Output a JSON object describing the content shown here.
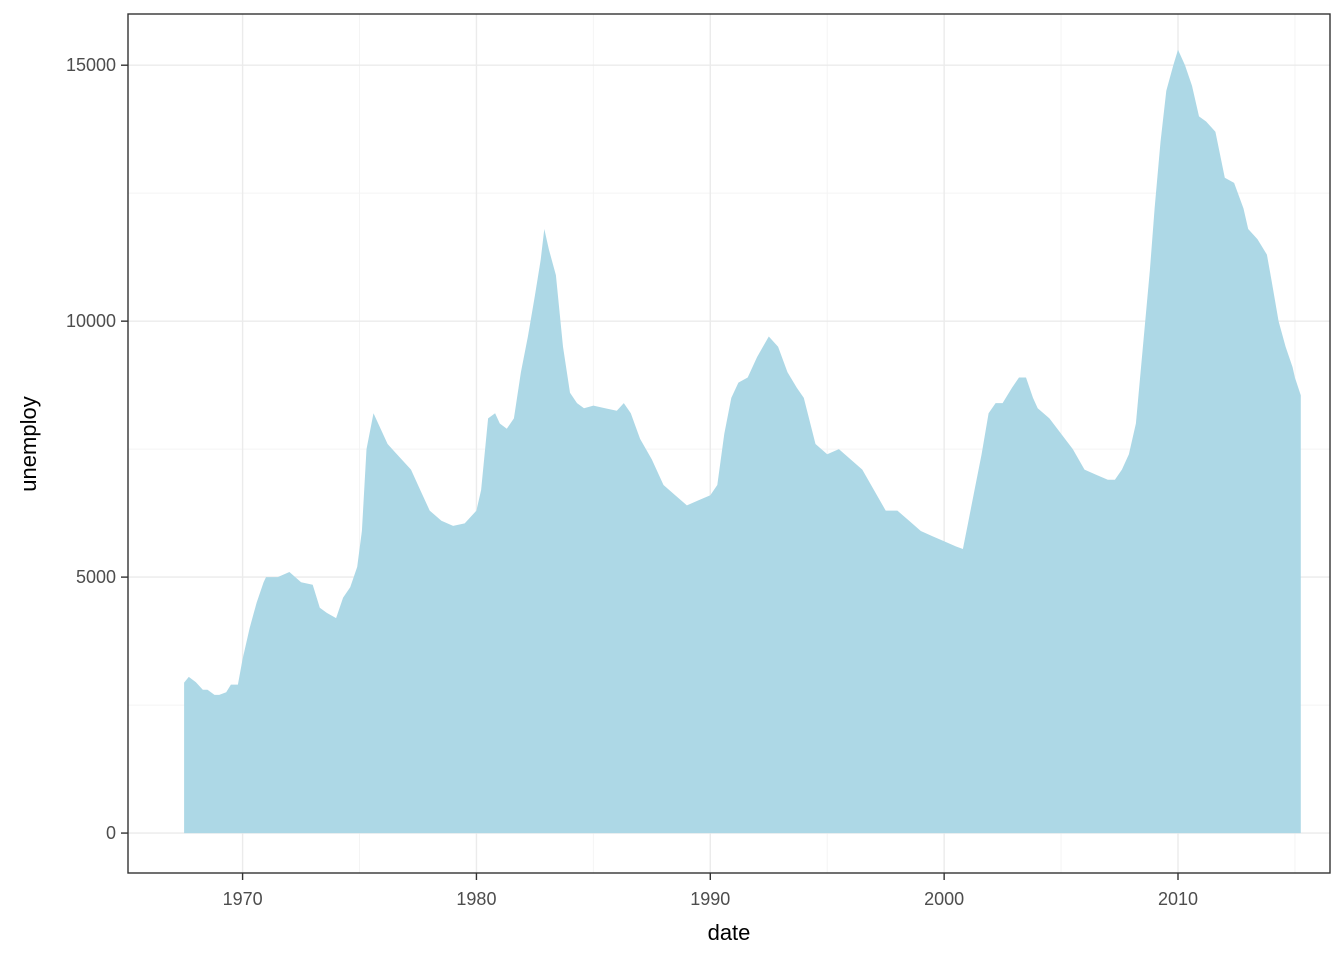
{
  "chart_data": {
    "type": "area",
    "title": "",
    "xlabel": "date",
    "ylabel": "unemploy",
    "x_ticks": [
      1970,
      1980,
      1990,
      2000,
      2010
    ],
    "y_ticks": [
      0,
      5000,
      10000,
      15000
    ],
    "xlim": [
      1965.1,
      2016.5
    ],
    "ylim": [
      -780,
      16000
    ],
    "grid": true,
    "legend": "none",
    "fill_color": "#add8e6",
    "series": [
      {
        "x": [
          1967.5,
          1967.7,
          1968.0,
          1968.3,
          1968.5,
          1968.8,
          1969.0,
          1969.3,
          1969.5,
          1969.8,
          1970.0,
          1970.3,
          1970.6,
          1970.9,
          1971.0,
          1971.5,
          1972.0,
          1972.5,
          1973.0,
          1973.3,
          1973.6,
          1974.0,
          1974.3,
          1974.6,
          1974.9,
          1975.1,
          1975.3,
          1975.6,
          1975.9,
          1976.2,
          1976.5,
          1976.8,
          1977.2,
          1977.6,
          1978.0,
          1978.5,
          1979.0,
          1979.5,
          1980.0,
          1980.2,
          1980.5,
          1980.8,
          1981.0,
          1981.3,
          1981.6,
          1981.9,
          1982.2,
          1982.5,
          1982.75,
          1982.9,
          1983.1,
          1983.4,
          1983.7,
          1984.0,
          1984.3,
          1984.6,
          1985.0,
          1985.5,
          1986.0,
          1986.3,
          1986.6,
          1987.0,
          1987.5,
          1988.0,
          1988.5,
          1989.0,
          1989.5,
          1990.0,
          1990.3,
          1990.6,
          1990.9,
          1991.2,
          1991.6,
          1992.0,
          1992.5,
          1992.9,
          1993.3,
          1993.7,
          1994.0,
          1994.5,
          1995.0,
          1995.5,
          1996.0,
          1996.5,
          1997.0,
          1997.5,
          1998.0,
          1998.5,
          1999.0,
          1999.5,
          2000.0,
          2000.5,
          2000.8,
          2001.0,
          2001.3,
          2001.6,
          2001.9,
          2002.2,
          2002.5,
          2002.9,
          2003.2,
          2003.5,
          2003.8,
          2004.0,
          2004.5,
          2005.0,
          2005.5,
          2006.0,
          2006.5,
          2007.0,
          2007.3,
          2007.6,
          2007.9,
          2008.2,
          2008.5,
          2008.8,
          2009.0,
          2009.25,
          2009.5,
          2009.8,
          2010.0,
          2010.3,
          2010.6,
          2010.9,
          2011.2,
          2011.6,
          2012.0,
          2012.4,
          2012.8,
          2013.0,
          2013.4,
          2013.8,
          2014.0,
          2014.3,
          2014.6,
          2014.9,
          2015.0,
          2015.25
        ],
        "y": [
          2940,
          3050,
          2950,
          2800,
          2800,
          2700,
          2700,
          2750,
          2900,
          2900,
          3400,
          4000,
          4500,
          4900,
          5000,
          5000,
          5100,
          4900,
          4850,
          4400,
          4300,
          4200,
          4600,
          4800,
          5200,
          5900,
          7500,
          8200,
          7900,
          7600,
          7450,
          7300,
          7100,
          6700,
          6300,
          6100,
          6000,
          6050,
          6300,
          6700,
          8100,
          8200,
          8000,
          7900,
          8100,
          9000,
          9700,
          10500,
          11200,
          11800,
          11400,
          10900,
          9500,
          8600,
          8400,
          8300,
          8350,
          8300,
          8250,
          8400,
          8200,
          7700,
          7300,
          6800,
          6600,
          6400,
          6500,
          6600,
          6800,
          7800,
          8500,
          8800,
          8900,
          9300,
          9700,
          9500,
          9000,
          8700,
          8500,
          7600,
          7400,
          7500,
          7300,
          7100,
          6700,
          6300,
          6300,
          6100,
          5900,
          5800,
          5700,
          5600,
          5550,
          6000,
          6700,
          7400,
          8200,
          8400,
          8400,
          8700,
          8900,
          8900,
          8500,
          8300,
          8100,
          7800,
          7500,
          7100,
          7000,
          6900,
          6900,
          7100,
          7400,
          8000,
          9500,
          11000,
          12200,
          13500,
          14500,
          15000,
          15300,
          15000,
          14600,
          14000,
          13900,
          13700,
          12800,
          12700,
          12200,
          11800,
          11600,
          11300,
          10800,
          10000,
          9500,
          9100,
          8900,
          8550
        ]
      }
    ]
  }
}
